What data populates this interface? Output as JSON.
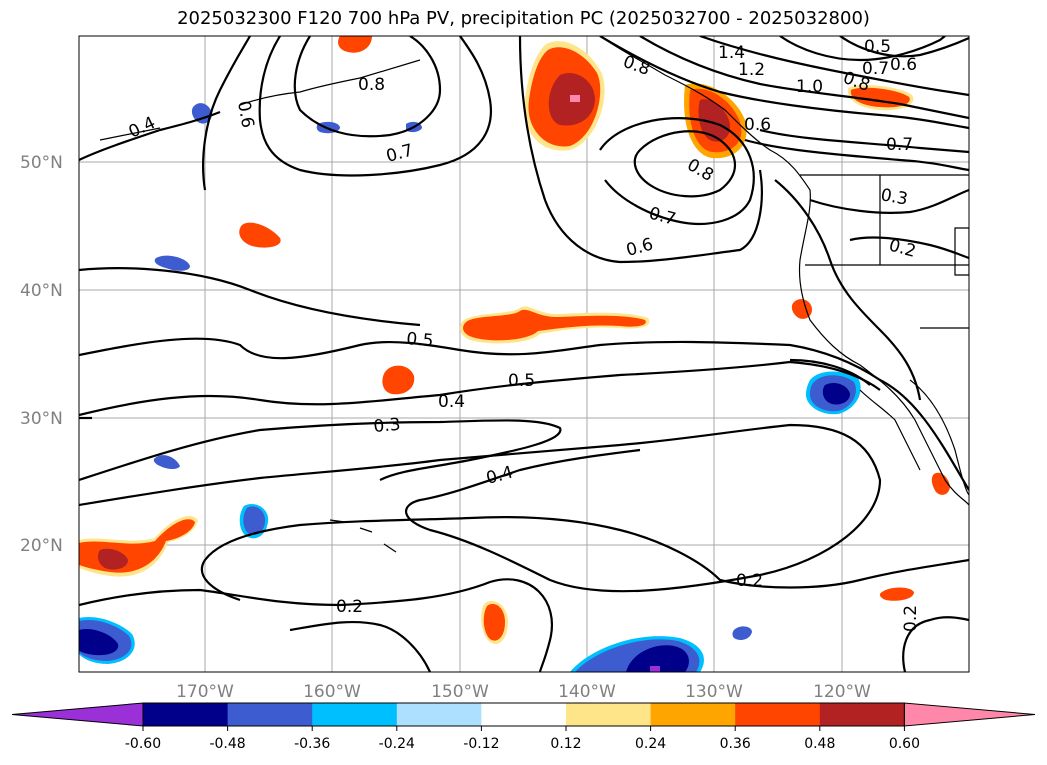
{
  "title": "2025032300 F120 700 hPa PV, precipitation PC (2025032700 - 2025032800)",
  "map": {
    "lat_ticks": [
      "50°N",
      "40°N",
      "30°N",
      "20°N"
    ],
    "lon_ticks": [
      "170°W",
      "160°W",
      "150°W",
      "140°W",
      "130°W",
      "120°W"
    ],
    "contour_labels": [
      "0.4",
      "0.6",
      "0.8",
      "0.7",
      "1.4",
      "1.2",
      "1.0",
      "0.8",
      "0.5",
      "0.7",
      "0.6",
      "0.8",
      "0.6",
      "0.7",
      "0.8",
      "0.7",
      "0.6",
      "0.3",
      "0.2",
      "0.5",
      "0.5",
      "0.4",
      "0.3",
      "0.4",
      "0.2",
      "0.2",
      "0.2"
    ],
    "contour_levels": [
      0.2,
      0.3,
      0.4,
      0.5,
      0.6,
      0.7,
      0.8,
      1.0,
      1.2,
      1.4
    ],
    "positive_color": "#ff4500",
    "negative_color": "#3a5bd6"
  },
  "colorbar": {
    "levels": [
      "-0.60",
      "-0.48",
      "-0.36",
      "-0.24",
      "-0.12",
      "0.12",
      "0.24",
      "0.36",
      "0.48",
      "0.60"
    ],
    "colors": [
      "#9b30d9",
      "#00008b",
      "#3c5ccf",
      "#00bfff",
      "#addfff",
      "#ffffff",
      "#ffe58a",
      "#ffa500",
      "#ff4500",
      "#b22222",
      "#ff88aa"
    ]
  }
}
